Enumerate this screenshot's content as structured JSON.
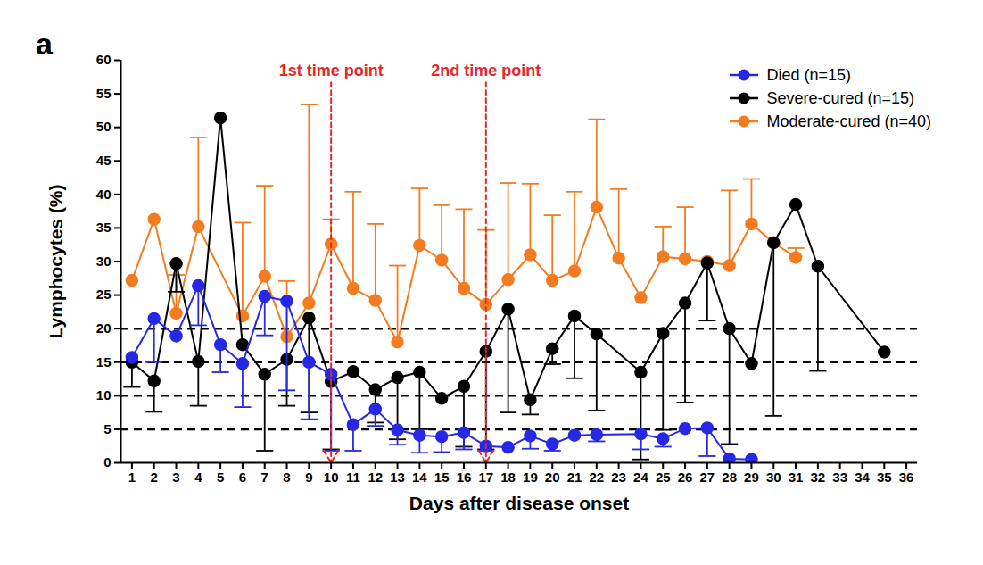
{
  "chart_data": {
    "type": "line",
    "panel_label": "a",
    "x_label": "Days after disease onset",
    "y_label": "Lymphocytes (%)",
    "xlim": [
      0.5,
      36.5
    ],
    "xticks": [
      1,
      2,
      3,
      4,
      5,
      6,
      7,
      8,
      9,
      10,
      11,
      12,
      13,
      14,
      15,
      16,
      17,
      18,
      19,
      20,
      21,
      22,
      23,
      24,
      25,
      26,
      27,
      28,
      29,
      30,
      31,
      32,
      33,
      34,
      35,
      36
    ],
    "ylim": [
      0,
      60
    ],
    "yticks": [
      0,
      5,
      10,
      15,
      20,
      25,
      30,
      35,
      40,
      45,
      50,
      55,
      60
    ],
    "grid": false,
    "legend": "top-right",
    "reference_lines": [
      5,
      10,
      15,
      20
    ],
    "annotations": [
      {
        "x": 10,
        "text": "1st time point",
        "color": "#e8262b"
      },
      {
        "x": 17,
        "text": "2nd time point",
        "color": "#e8262b"
      }
    ],
    "series": [
      {
        "name": "Moderate-cured (n=40)",
        "color": "#f47b20",
        "marker": "circle",
        "x": [
          1,
          2,
          3,
          4,
          6,
          7,
          8,
          9,
          10,
          11,
          12,
          13,
          14,
          15,
          16,
          17,
          18,
          19,
          20,
          21,
          22,
          23,
          24,
          25,
          26,
          27,
          28,
          29,
          30,
          31
        ],
        "values": [
          27.2,
          36.3,
          22.3,
          35.2,
          21.9,
          27.8,
          18.8,
          23.8,
          32.6,
          26.0,
          24.2,
          18.0,
          32.4,
          30.2,
          26.0,
          23.6,
          27.3,
          31.0,
          27.2,
          28.6,
          38.1,
          30.5,
          24.6,
          30.7,
          30.4,
          30.0,
          29.4,
          35.6,
          32.8,
          30.6
        ],
        "error_high": [
          null,
          null,
          28.0,
          48.5,
          35.8,
          41.3,
          27.1,
          53.4,
          36.3,
          40.4,
          35.6,
          29.4,
          40.9,
          38.4,
          37.8,
          34.7,
          41.7,
          41.6,
          36.9,
          40.4,
          51.2,
          40.8,
          null,
          35.2,
          38.1,
          null,
          40.6,
          42.3,
          null,
          32.0
        ]
      },
      {
        "name": "Severe-cured (n=15)",
        "color": "#000000",
        "marker": "circle",
        "x": [
          1,
          2,
          3,
          4,
          5,
          6,
          7,
          8,
          9,
          10,
          11,
          12,
          13,
          14,
          15,
          16,
          17,
          18,
          19,
          20,
          21,
          22,
          24,
          25,
          26,
          27,
          28,
          29,
          30,
          31,
          32,
          35
        ],
        "values": [
          15.0,
          12.2,
          29.7,
          15.1,
          51.4,
          17.6,
          13.2,
          15.4,
          21.6,
          12.1,
          13.6,
          10.9,
          12.7,
          13.5,
          9.6,
          11.4,
          16.6,
          22.9,
          9.4,
          17.0,
          21.9,
          19.2,
          13.5,
          19.3,
          23.8,
          29.8,
          20.0,
          14.8,
          32.8,
          38.5,
          29.3,
          16.5
        ],
        "error_low": [
          11.3,
          7.6,
          25.5,
          8.5,
          null,
          null,
          1.8,
          8.5,
          7.5,
          2.0,
          null,
          6.0,
          3.5,
          5.0,
          null,
          2.4,
          2.0,
          7.5,
          7.2,
          14.7,
          12.6,
          7.8,
          0.5,
          4.9,
          9.0,
          21.2,
          2.8,
          null,
          7.0,
          null,
          13.7,
          null
        ]
      },
      {
        "name": "Died (n=15)",
        "color": "#2727e6",
        "marker": "circle",
        "x": [
          1,
          2,
          3,
          4,
          5,
          6,
          7,
          8,
          9,
          10,
          11,
          12,
          13,
          14,
          15,
          16,
          17,
          18,
          19,
          20,
          21,
          22,
          24,
          25,
          26,
          27,
          28,
          29
        ],
        "values": [
          15.7,
          21.5,
          18.9,
          26.4,
          17.6,
          14.8,
          24.8,
          24.1,
          15.0,
          13.2,
          5.7,
          8.0,
          4.9,
          4.1,
          3.9,
          4.5,
          2.5,
          2.3,
          4.0,
          2.8,
          4.1,
          4.2,
          4.3,
          3.6,
          5.1,
          5.2,
          0.6,
          0.5
        ],
        "error_low": [
          null,
          15.0,
          null,
          20.5,
          13.5,
          8.3,
          19.0,
          10.8,
          6.5,
          1.8,
          1.8,
          5.5,
          2.7,
          1.5,
          1.6,
          2.0,
          1.8,
          null,
          2.1,
          1.8,
          null,
          3.2,
          2.0,
          2.4,
          null,
          1.0,
          null,
          null
        ]
      }
    ],
    "legend_order": [
      "Died (n=15)",
      "Severe-cured (n=15)",
      "Moderate-cured (n=40)"
    ]
  }
}
